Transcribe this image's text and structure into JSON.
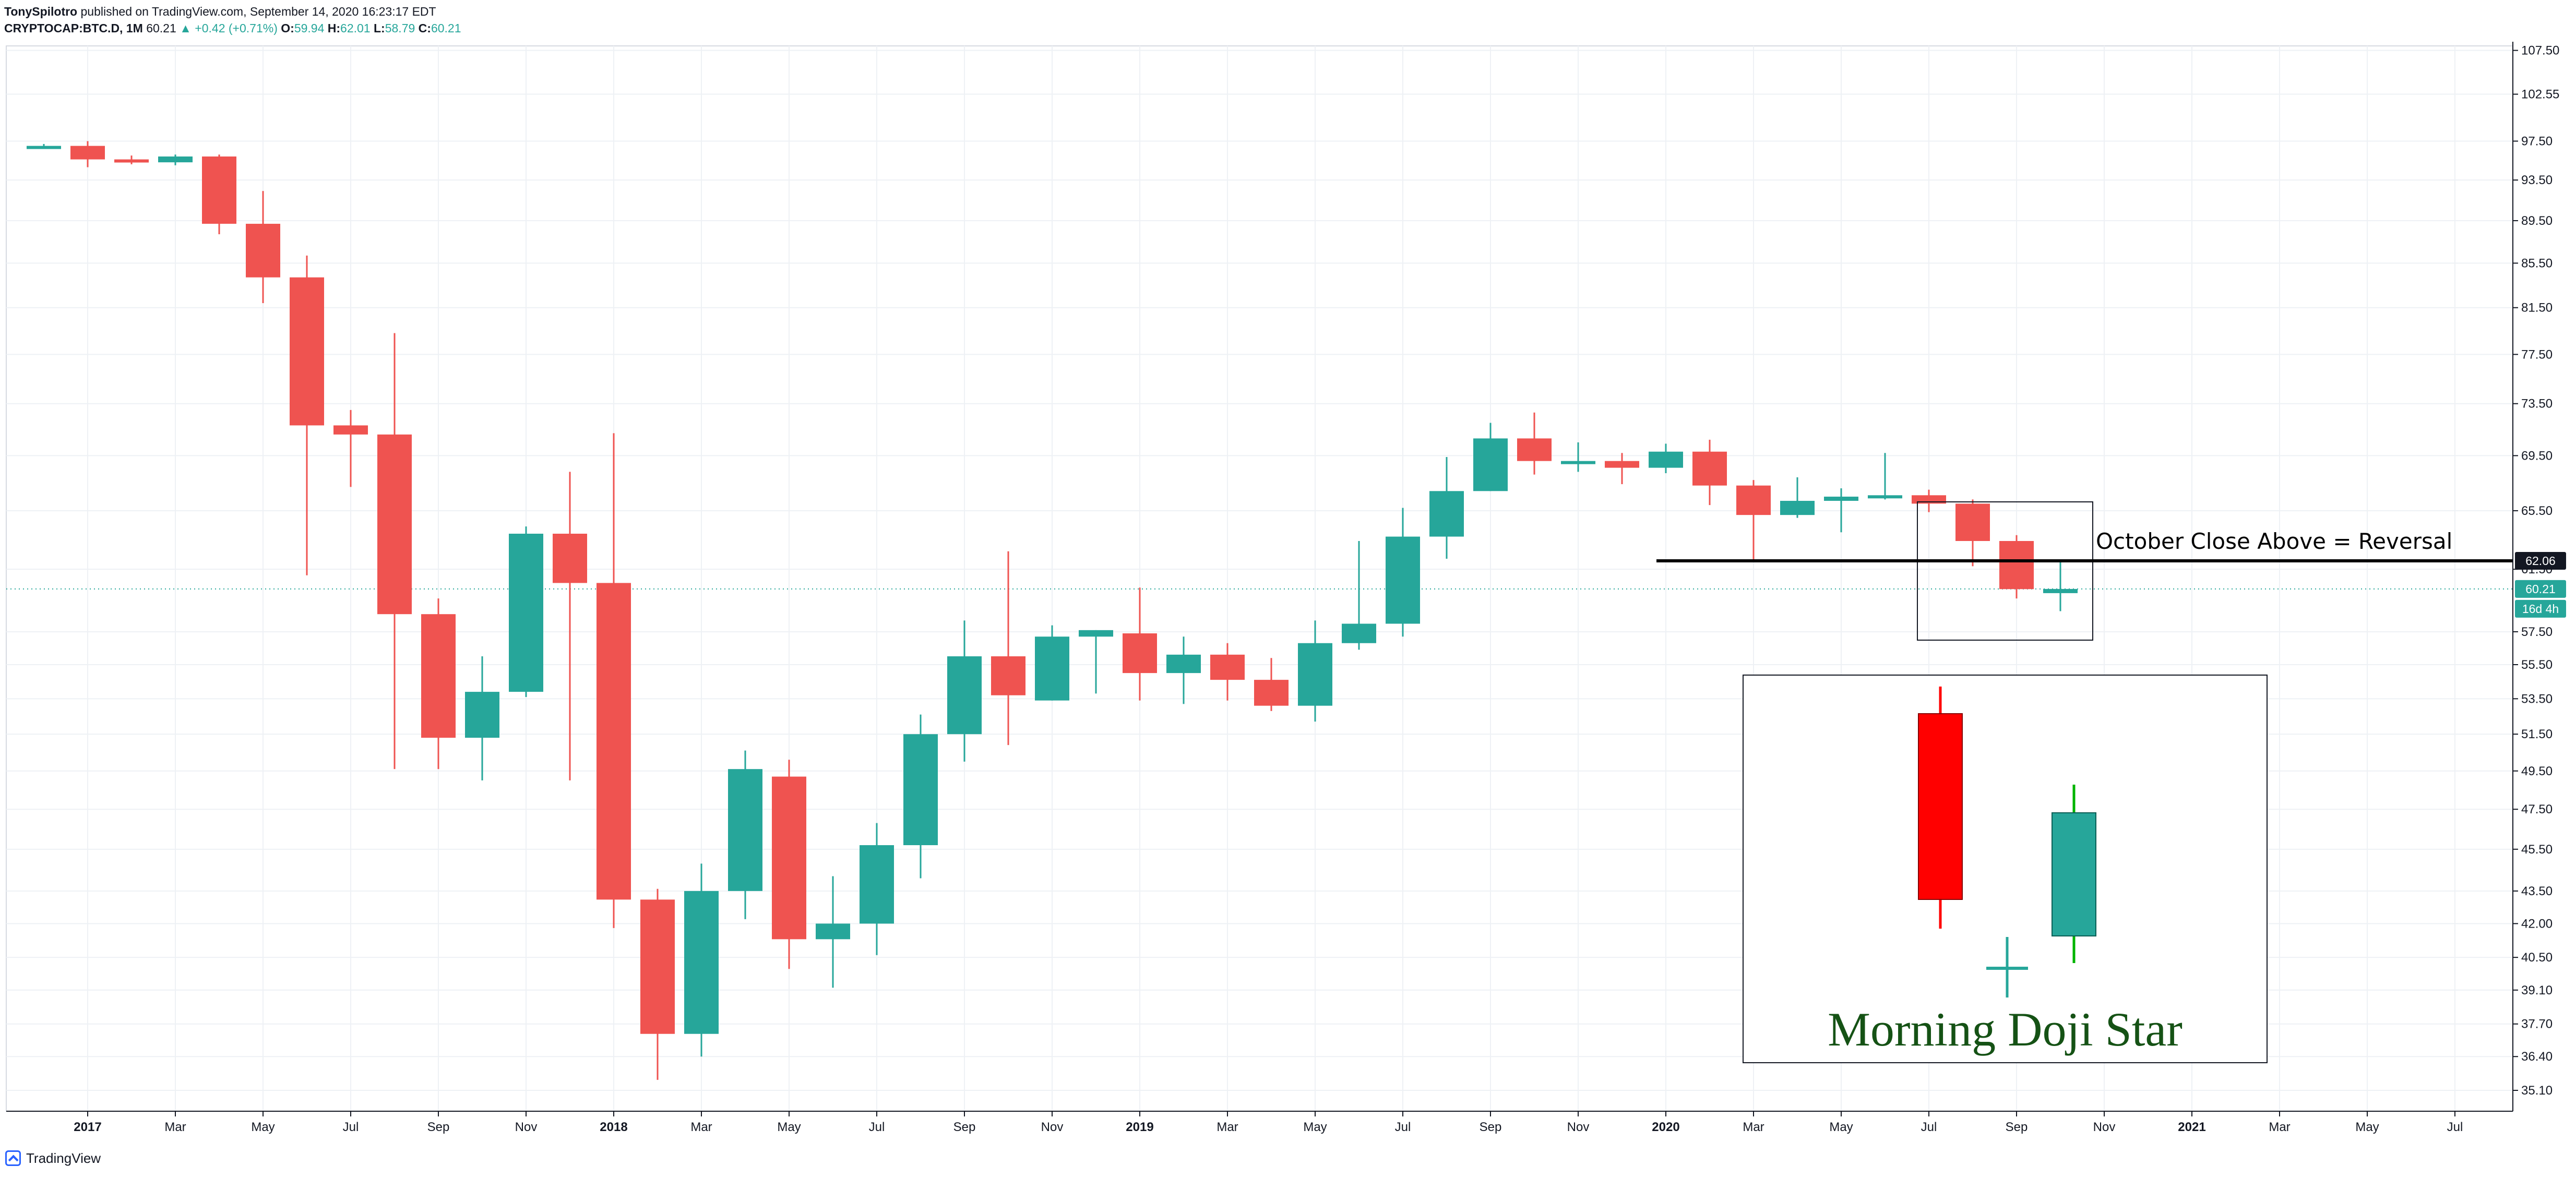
{
  "header": {
    "author": "TonySpilotro",
    "published": "published on TradingView.com, September 14, 2020 16:23:17 EDT",
    "symbol": "CRYPTOCAP:BTC.D, 1M",
    "last": "60.21",
    "change": "▲ +0.42 (+0.71%)",
    "o_label": "O:",
    "o_value": "59.94",
    "h_label": "H:",
    "h_value": "62.01",
    "l_label": "L:",
    "l_value": "58.79",
    "c_label": "C:",
    "c_value": "60.21"
  },
  "footer": {
    "brand": "TradingView"
  },
  "colors": {
    "up": "#26a69a",
    "down": "#ef5350",
    "grid": "#eef1f5",
    "text": "#131722",
    "annot_red": "#ff0000",
    "annot_green": "#00b300",
    "annot_title": "#155215"
  },
  "chart_data": {
    "type": "candlestick",
    "title": "",
    "price_scale": "log",
    "y_ticks": [
      "107.50",
      "102.55",
      "97.50",
      "93.50",
      "89.50",
      "85.50",
      "81.50",
      "77.50",
      "73.50",
      "69.50",
      "65.50",
      "61.50",
      "57.50",
      "55.50",
      "53.50",
      "51.50",
      "49.50",
      "47.50",
      "45.50",
      "43.50",
      "42.00",
      "40.50",
      "39.10",
      "37.70",
      "36.40",
      "35.10"
    ],
    "x_ticks": [
      "2017",
      "Mar",
      "May",
      "Jul",
      "Sep",
      "Nov",
      "2018",
      "Mar",
      "May",
      "Jul",
      "Sep",
      "Nov",
      "2019",
      "Mar",
      "May",
      "Jul",
      "Sep",
      "Nov",
      "2020",
      "Mar",
      "May",
      "Jul",
      "Sep",
      "Nov",
      "2021",
      "Mar",
      "May",
      "Jul"
    ],
    "x_ticks_bold": [
      true,
      false,
      false,
      false,
      false,
      false,
      true,
      false,
      false,
      false,
      false,
      false,
      true,
      false,
      false,
      false,
      false,
      false,
      true,
      false,
      false,
      false,
      false,
      false,
      true,
      false,
      false,
      false
    ],
    "candles": [
      {
        "date": "2016-12",
        "o": 97.0,
        "h": 97.2,
        "l": 96.8,
        "c": 97.0
      },
      {
        "date": "2017-01",
        "o": 97.0,
        "h": 97.5,
        "l": 94.8,
        "c": 95.6
      },
      {
        "date": "2017-02",
        "o": 95.6,
        "h": 96.0,
        "l": 95.1,
        "c": 95.4
      },
      {
        "date": "2017-03",
        "o": 95.3,
        "h": 96.1,
        "l": 95.0,
        "c": 95.9
      },
      {
        "date": "2017-04",
        "o": 95.9,
        "h": 96.1,
        "l": 88.2,
        "c": 89.2
      },
      {
        "date": "2017-05",
        "o": 89.2,
        "h": 92.4,
        "l": 81.9,
        "c": 84.2
      },
      {
        "date": "2017-06",
        "o": 84.2,
        "h": 86.2,
        "l": 61.1,
        "c": 71.8
      },
      {
        "date": "2017-07",
        "o": 71.8,
        "h": 73.0,
        "l": 67.2,
        "c": 71.1
      },
      {
        "date": "2017-08",
        "o": 71.1,
        "h": 79.3,
        "l": 49.6,
        "c": 58.6
      },
      {
        "date": "2017-09",
        "o": 58.6,
        "h": 59.6,
        "l": 49.6,
        "c": 51.3
      },
      {
        "date": "2017-10",
        "o": 51.3,
        "h": 56.0,
        "l": 49.0,
        "c": 53.9
      },
      {
        "date": "2017-11",
        "o": 53.9,
        "h": 64.4,
        "l": 53.6,
        "c": 63.9
      },
      {
        "date": "2017-12",
        "o": 63.9,
        "h": 68.3,
        "l": 49.0,
        "c": 60.6
      },
      {
        "date": "2018-01",
        "o": 60.6,
        "h": 71.2,
        "l": 41.8,
        "c": 43.1
      },
      {
        "date": "2018-02",
        "o": 43.1,
        "h": 43.6,
        "l": 35.5,
        "c": 37.3
      },
      {
        "date": "2018-03",
        "o": 37.3,
        "h": 44.8,
        "l": 36.4,
        "c": 43.5
      },
      {
        "date": "2018-04",
        "o": 43.5,
        "h": 50.6,
        "l": 42.2,
        "c": 49.6
      },
      {
        "date": "2018-05",
        "o": 49.2,
        "h": 50.1,
        "l": 40.0,
        "c": 41.3
      },
      {
        "date": "2018-06",
        "o": 41.3,
        "h": 44.2,
        "l": 39.2,
        "c": 42.0
      },
      {
        "date": "2018-07",
        "o": 42.0,
        "h": 46.8,
        "l": 40.6,
        "c": 45.7
      },
      {
        "date": "2018-08",
        "o": 45.7,
        "h": 52.6,
        "l": 44.1,
        "c": 51.5
      },
      {
        "date": "2018-09",
        "o": 51.5,
        "h": 58.2,
        "l": 50.0,
        "c": 56.0
      },
      {
        "date": "2018-10",
        "o": 56.0,
        "h": 62.7,
        "l": 50.9,
        "c": 53.7
      },
      {
        "date": "2018-11",
        "o": 53.4,
        "h": 57.9,
        "l": 53.4,
        "c": 57.2
      },
      {
        "date": "2018-12",
        "o": 57.2,
        "h": 57.6,
        "l": 53.8,
        "c": 57.6
      },
      {
        "date": "2019-01",
        "o": 57.4,
        "h": 60.3,
        "l": 53.4,
        "c": 55.0
      },
      {
        "date": "2019-02",
        "o": 55.0,
        "h": 57.2,
        "l": 53.2,
        "c": 56.1
      },
      {
        "date": "2019-03",
        "o": 56.1,
        "h": 56.8,
        "l": 53.4,
        "c": 54.6
      },
      {
        "date": "2019-04",
        "o": 54.6,
        "h": 55.9,
        "l": 52.8,
        "c": 53.1
      },
      {
        "date": "2019-05",
        "o": 53.1,
        "h": 58.2,
        "l": 52.2,
        "c": 56.8
      },
      {
        "date": "2019-06",
        "o": 56.8,
        "h": 63.4,
        "l": 56.4,
        "c": 58.0
      },
      {
        "date": "2019-07",
        "o": 58.0,
        "h": 65.7,
        "l": 57.2,
        "c": 63.7
      },
      {
        "date": "2019-08",
        "o": 63.7,
        "h": 69.4,
        "l": 62.2,
        "c": 66.9
      },
      {
        "date": "2019-09",
        "o": 66.9,
        "h": 72.0,
        "l": 66.9,
        "c": 70.8
      },
      {
        "date": "2019-10",
        "o": 70.8,
        "h": 72.8,
        "l": 68.1,
        "c": 69.1
      },
      {
        "date": "2019-11",
        "o": 69.1,
        "h": 70.5,
        "l": 68.3,
        "c": 69.1
      },
      {
        "date": "2019-12",
        "o": 69.1,
        "h": 69.7,
        "l": 67.4,
        "c": 68.6
      },
      {
        "date": "2020-01",
        "o": 68.6,
        "h": 70.4,
        "l": 68.2,
        "c": 69.8
      },
      {
        "date": "2020-02",
        "o": 69.8,
        "h": 70.7,
        "l": 65.9,
        "c": 67.3
      },
      {
        "date": "2020-03",
        "o": 67.3,
        "h": 67.7,
        "l": 62.1,
        "c": 65.2
      },
      {
        "date": "2020-04",
        "o": 65.2,
        "h": 67.9,
        "l": 65.0,
        "c": 66.2
      },
      {
        "date": "2020-05",
        "o": 66.2,
        "h": 67.1,
        "l": 64.0,
        "c": 66.5
      },
      {
        "date": "2020-06",
        "o": 66.5,
        "h": 69.7,
        "l": 66.3,
        "c": 66.6
      },
      {
        "date": "2020-07",
        "o": 66.6,
        "h": 67.0,
        "l": 65.4,
        "c": 66.0
      },
      {
        "date": "2020-08",
        "o": 66.0,
        "h": 66.3,
        "l": 61.7,
        "c": 63.4
      },
      {
        "date": "2020-09",
        "o": 63.4,
        "h": 63.8,
        "l": 59.6,
        "c": 60.2
      },
      {
        "date": "2020-10",
        "o": 59.94,
        "h": 62.01,
        "l": 58.79,
        "c": 60.21
      }
    ],
    "horizontal_line": 62.06,
    "price_labels": [
      {
        "value": "62.06",
        "bg": "#131722",
        "fg": "#ffffff"
      },
      {
        "value": "60.21",
        "bg": "#26a69a",
        "fg": "#ffffff"
      },
      {
        "value": "16d 4h",
        "bg": "#26a69a",
        "fg": "#ffffff"
      }
    ],
    "annotations": {
      "reversal_text": "October Close Above = Reversal",
      "pattern_title": "Morning Doji Star"
    }
  }
}
